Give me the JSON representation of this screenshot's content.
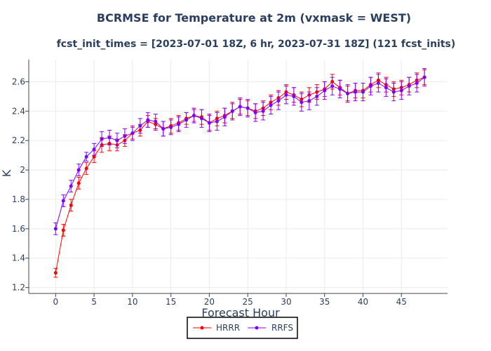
{
  "chart_data": {
    "type": "line",
    "title": "BCRMSE for Temperature at 2m (vxmask = WEST)",
    "subtitle": "fcst_init_times = [2023-07-01 18Z, 6 hr, 2023-07-31 18Z] (121 fcst_inits)",
    "xlabel": "Forecast Hour",
    "ylabel": "K",
    "xlim": [
      -3.5,
      51
    ],
    "ylim": [
      1.16,
      2.75
    ],
    "xticks": [
      0,
      5,
      10,
      15,
      20,
      25,
      30,
      35,
      40,
      45
    ],
    "xtick_labels": [
      "0",
      "5",
      "10",
      "15",
      "20",
      "25",
      "30",
      "35",
      "40",
      "45"
    ],
    "yticks": [
      1.2,
      1.4,
      1.6,
      1.8,
      2.0,
      2.2,
      2.4,
      2.6
    ],
    "ytick_labels": [
      "1.2",
      "1.4",
      "1.6",
      "1.8",
      "2",
      "2.2",
      "2.4",
      "2.6"
    ],
    "grid": true,
    "legend_position": "bottom-center",
    "x": [
      0,
      1,
      2,
      3,
      4,
      5,
      6,
      7,
      8,
      9,
      10,
      11,
      12,
      13,
      14,
      15,
      16,
      17,
      18,
      19,
      20,
      21,
      22,
      23,
      24,
      25,
      26,
      27,
      28,
      29,
      30,
      31,
      32,
      33,
      34,
      35,
      36,
      37,
      38,
      39,
      40,
      41,
      42,
      43,
      44,
      45,
      46,
      47,
      48
    ],
    "series": [
      {
        "name": "HRRR",
        "color": "#ff0000",
        "values": [
          1.3,
          1.59,
          1.76,
          1.91,
          2.01,
          2.09,
          2.17,
          2.18,
          2.17,
          2.2,
          2.25,
          2.27,
          2.33,
          2.31,
          2.28,
          2.3,
          2.32,
          2.35,
          2.37,
          2.36,
          2.32,
          2.35,
          2.37,
          2.4,
          2.43,
          2.42,
          2.4,
          2.42,
          2.46,
          2.49,
          2.53,
          2.51,
          2.48,
          2.51,
          2.53,
          2.55,
          2.6,
          2.56,
          2.52,
          2.54,
          2.54,
          2.58,
          2.61,
          2.58,
          2.55,
          2.56,
          2.58,
          2.61,
          2.63
        ],
        "errors": [
          0.03,
          0.04,
          0.04,
          0.04,
          0.04,
          0.04,
          0.05,
          0.05,
          0.04,
          0.04,
          0.04,
          0.04,
          0.04,
          0.04,
          0.05,
          0.05,
          0.05,
          0.04,
          0.04,
          0.05,
          0.05,
          0.05,
          0.05,
          0.05,
          0.05,
          0.05,
          0.05,
          0.05,
          0.05,
          0.05,
          0.05,
          0.05,
          0.05,
          0.05,
          0.05,
          0.05,
          0.05,
          0.05,
          0.05,
          0.05,
          0.05,
          0.05,
          0.05,
          0.05,
          0.05,
          0.05,
          0.05,
          0.05,
          0.05
        ]
      },
      {
        "name": "RRFS",
        "color": "#8000ff",
        "values": [
          1.6,
          1.79,
          1.89,
          2.0,
          2.09,
          2.14,
          2.21,
          2.22,
          2.2,
          2.23,
          2.25,
          2.3,
          2.34,
          2.33,
          2.28,
          2.29,
          2.31,
          2.34,
          2.37,
          2.35,
          2.32,
          2.33,
          2.36,
          2.4,
          2.43,
          2.42,
          2.39,
          2.4,
          2.44,
          2.47,
          2.51,
          2.5,
          2.46,
          2.47,
          2.5,
          2.54,
          2.57,
          2.55,
          2.52,
          2.53,
          2.53,
          2.57,
          2.59,
          2.56,
          2.53,
          2.54,
          2.57,
          2.59,
          2.63
        ],
        "errors": [
          0.04,
          0.04,
          0.04,
          0.04,
          0.03,
          0.04,
          0.05,
          0.05,
          0.05,
          0.05,
          0.05,
          0.05,
          0.05,
          0.05,
          0.05,
          0.05,
          0.05,
          0.05,
          0.05,
          0.06,
          0.06,
          0.06,
          0.06,
          0.06,
          0.06,
          0.06,
          0.06,
          0.06,
          0.06,
          0.06,
          0.06,
          0.06,
          0.06,
          0.06,
          0.06,
          0.06,
          0.06,
          0.06,
          0.06,
          0.06,
          0.06,
          0.06,
          0.06,
          0.06,
          0.06,
          0.06,
          0.06,
          0.06,
          0.06
        ]
      }
    ]
  }
}
